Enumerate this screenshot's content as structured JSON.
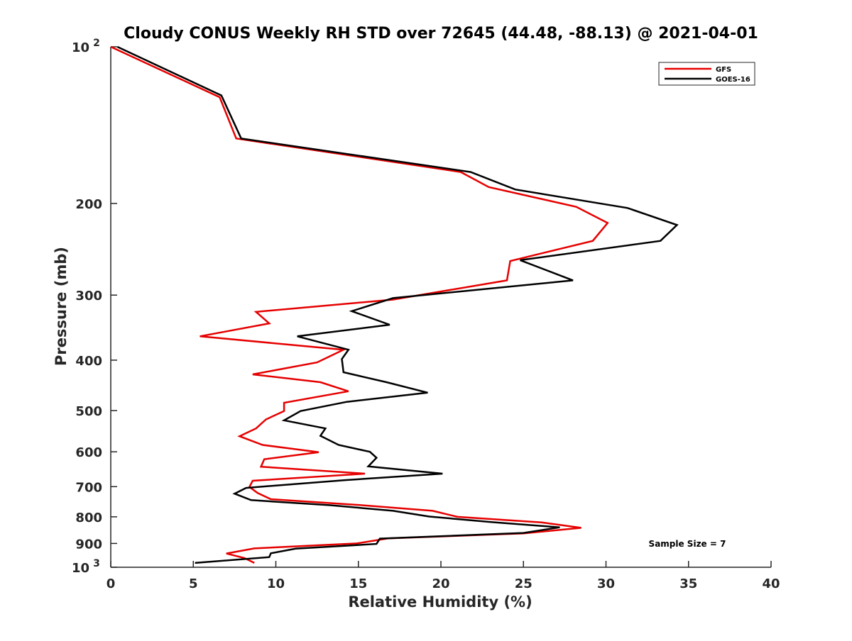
{
  "chart_data": {
    "type": "line",
    "title": "Cloudy CONUS Weekly RH STD over 72645 (44.48, -88.13) @ 2021-04-01",
    "xlabel": "Relative Humidity (%)",
    "ylabel": "Pressure (mb)",
    "xlim": [
      0,
      40
    ],
    "ylim": [
      100,
      1000
    ],
    "y_scale": "log",
    "y_reversed": true,
    "x_ticks": [
      "0",
      "5",
      "10",
      "15",
      "20",
      "25",
      "30",
      "35",
      "40"
    ],
    "y_ticks": [
      {
        "value": 100,
        "base": "10",
        "exp": "2"
      },
      {
        "value": 200,
        "label": "200"
      },
      {
        "value": 300,
        "label": "300"
      },
      {
        "value": 400,
        "label": "400"
      },
      {
        "value": 500,
        "label": "500"
      },
      {
        "value": 600,
        "label": "600"
      },
      {
        "value": 700,
        "label": "700"
      },
      {
        "value": 800,
        "label": "800"
      },
      {
        "value": 900,
        "label": "900"
      },
      {
        "value": 1000,
        "base": "10",
        "exp": "3"
      }
    ],
    "grid": false,
    "legend_position": "top-right",
    "annotation": "Sample Size = 7",
    "series": [
      {
        "name": "GFS",
        "color": "#e60000",
        "points": [
          [
            0.0,
            100
          ],
          [
            6.6,
            125
          ],
          [
            7.6,
            150
          ],
          [
            21.2,
            174
          ],
          [
            22.9,
            186
          ],
          [
            28.2,
            203
          ],
          [
            30.1,
            218
          ],
          [
            29.2,
            236
          ],
          [
            24.2,
            258
          ],
          [
            24.0,
            281
          ],
          [
            17.1,
            306
          ],
          [
            8.8,
            323
          ],
          [
            9.6,
            340
          ],
          [
            5.4,
            360
          ],
          [
            14.1,
            382
          ],
          [
            12.5,
            404
          ],
          [
            8.6,
            426
          ],
          [
            12.7,
            441
          ],
          [
            14.4,
            459
          ],
          [
            10.5,
            483
          ],
          [
            10.5,
            501
          ],
          [
            9.4,
            520
          ],
          [
            8.8,
            541
          ],
          [
            7.8,
            560
          ],
          [
            9.2,
            582
          ],
          [
            12.6,
            601
          ],
          [
            9.3,
            620
          ],
          [
            9.1,
            641
          ],
          [
            15.4,
            661
          ],
          [
            8.6,
            682
          ],
          [
            8.4,
            701
          ],
          [
            8.9,
            720
          ],
          [
            9.7,
            740
          ],
          [
            15.0,
            759
          ],
          [
            19.5,
            779
          ],
          [
            21.0,
            800
          ],
          [
            26.1,
            820
          ],
          [
            28.5,
            840
          ],
          [
            25.0,
            861
          ],
          [
            16.8,
            880
          ],
          [
            14.9,
            900
          ],
          [
            8.7,
            920
          ],
          [
            7.0,
            941
          ],
          [
            8.1,
            960
          ],
          [
            8.7,
            981
          ]
        ]
      },
      {
        "name": "GOES-16",
        "color": "#000000",
        "points": [
          [
            0.4,
            100
          ],
          [
            6.7,
            124
          ],
          [
            7.9,
            150
          ],
          [
            21.8,
            174
          ],
          [
            24.5,
            188
          ],
          [
            31.3,
            204
          ],
          [
            34.3,
            220
          ],
          [
            33.3,
            236
          ],
          [
            24.8,
            257
          ],
          [
            28.0,
            281
          ],
          [
            17.1,
            304
          ],
          [
            14.6,
            322
          ],
          [
            16.9,
            342
          ],
          [
            11.3,
            360
          ],
          [
            14.4,
            382
          ],
          [
            14.0,
            398
          ],
          [
            14.1,
            422
          ],
          [
            16.7,
            441
          ],
          [
            19.2,
            462
          ],
          [
            14.3,
            481
          ],
          [
            11.5,
            501
          ],
          [
            10.5,
            522
          ],
          [
            13.0,
            541
          ],
          [
            12.7,
            559
          ],
          [
            13.8,
            582
          ],
          [
            15.7,
            600
          ],
          [
            16.1,
            616
          ],
          [
            15.6,
            640
          ],
          [
            20.1,
            661
          ],
          [
            14.2,
            680
          ],
          [
            8.2,
            704
          ],
          [
            7.5,
            722
          ],
          [
            8.5,
            743
          ],
          [
            13.3,
            760
          ],
          [
            17.1,
            779
          ],
          [
            19.3,
            799
          ],
          [
            23.1,
            819
          ],
          [
            27.2,
            838
          ],
          [
            25.0,
            859
          ],
          [
            16.3,
            881
          ],
          [
            16.1,
            902
          ],
          [
            11.2,
            921
          ],
          [
            9.7,
            940
          ],
          [
            9.6,
            956
          ],
          [
            5.1,
            981
          ]
        ]
      }
    ]
  }
}
